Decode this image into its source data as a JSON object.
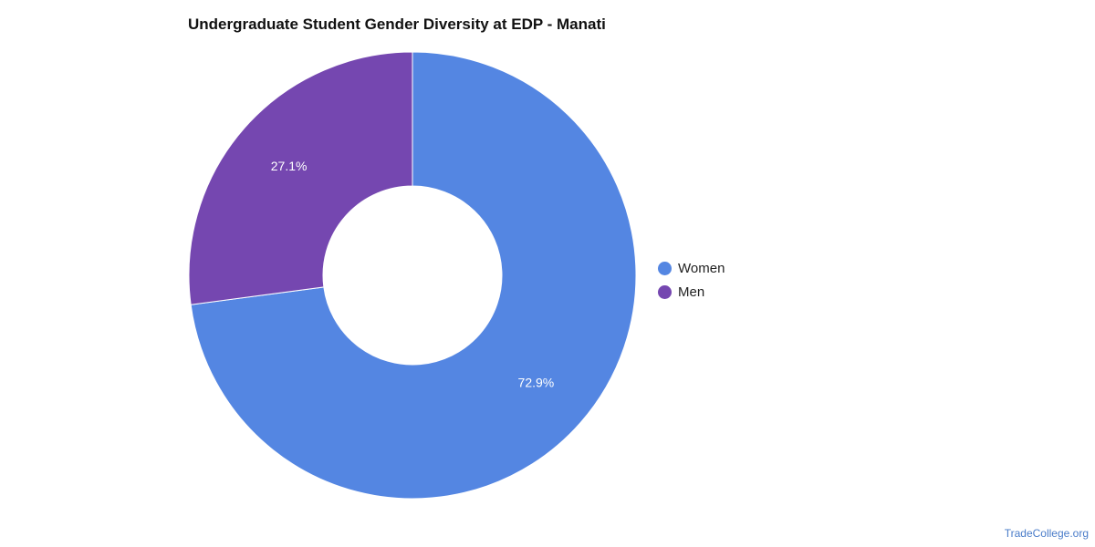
{
  "chart_data": {
    "type": "pie",
    "title": "Undergraduate Student Gender Diversity at EDP - Manati",
    "donut": true,
    "categories": [
      "Women",
      "Men"
    ],
    "values": [
      72.9,
      27.1
    ],
    "labels": [
      "72.9%",
      "27.1%"
    ],
    "colors": [
      "#5486E2",
      "#7547B0"
    ],
    "legend_position": "right"
  },
  "source": "TradeCollege.org"
}
